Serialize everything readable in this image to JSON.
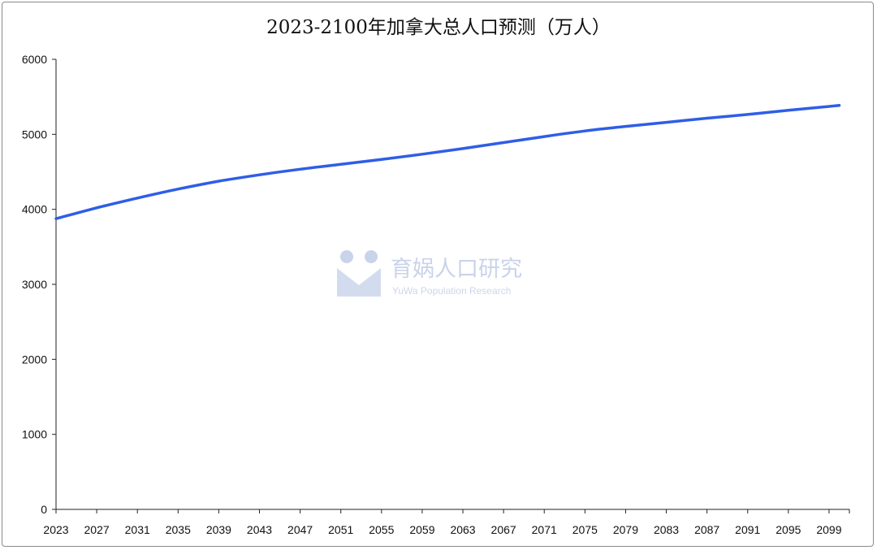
{
  "chart_data": {
    "type": "line",
    "title": "2023-2100年加拿大总人口预测（万人）",
    "xlabel": "",
    "ylabel": "",
    "x_ticks": [
      "2023",
      "2027",
      "2031",
      "2035",
      "2039",
      "2043",
      "2047",
      "2051",
      "2055",
      "2059",
      "2063",
      "2067",
      "2071",
      "2075",
      "2079",
      "2083",
      "2087",
      "2091",
      "2095",
      "2099"
    ],
    "ylim": [
      0,
      6000
    ],
    "y_ticks": [
      0,
      1000,
      2000,
      3000,
      4000,
      5000,
      6000
    ],
    "grid": false,
    "legend": "none",
    "series": [
      {
        "color": "#2f5ee6",
        "points": [
          {
            "x": 2023,
            "y": 3875
          },
          {
            "x": 2027,
            "y": 4020
          },
          {
            "x": 2031,
            "y": 4150
          },
          {
            "x": 2035,
            "y": 4270
          },
          {
            "x": 2039,
            "y": 4375
          },
          {
            "x": 2043,
            "y": 4460
          },
          {
            "x": 2047,
            "y": 4535
          },
          {
            "x": 2051,
            "y": 4600
          },
          {
            "x": 2055,
            "y": 4665
          },
          {
            "x": 2059,
            "y": 4735
          },
          {
            "x": 2063,
            "y": 4810
          },
          {
            "x": 2067,
            "y": 4890
          },
          {
            "x": 2071,
            "y": 4970
          },
          {
            "x": 2075,
            "y": 5045
          },
          {
            "x": 2079,
            "y": 5105
          },
          {
            "x": 2083,
            "y": 5160
          },
          {
            "x": 2087,
            "y": 5215
          },
          {
            "x": 2091,
            "y": 5265
          },
          {
            "x": 2095,
            "y": 5320
          },
          {
            "x": 2100,
            "y": 5385
          }
        ]
      }
    ]
  },
  "watermark": {
    "name_cn": "育娲人口研究",
    "name_en": "YuWa Population Research",
    "color": "#c9d3ea"
  }
}
